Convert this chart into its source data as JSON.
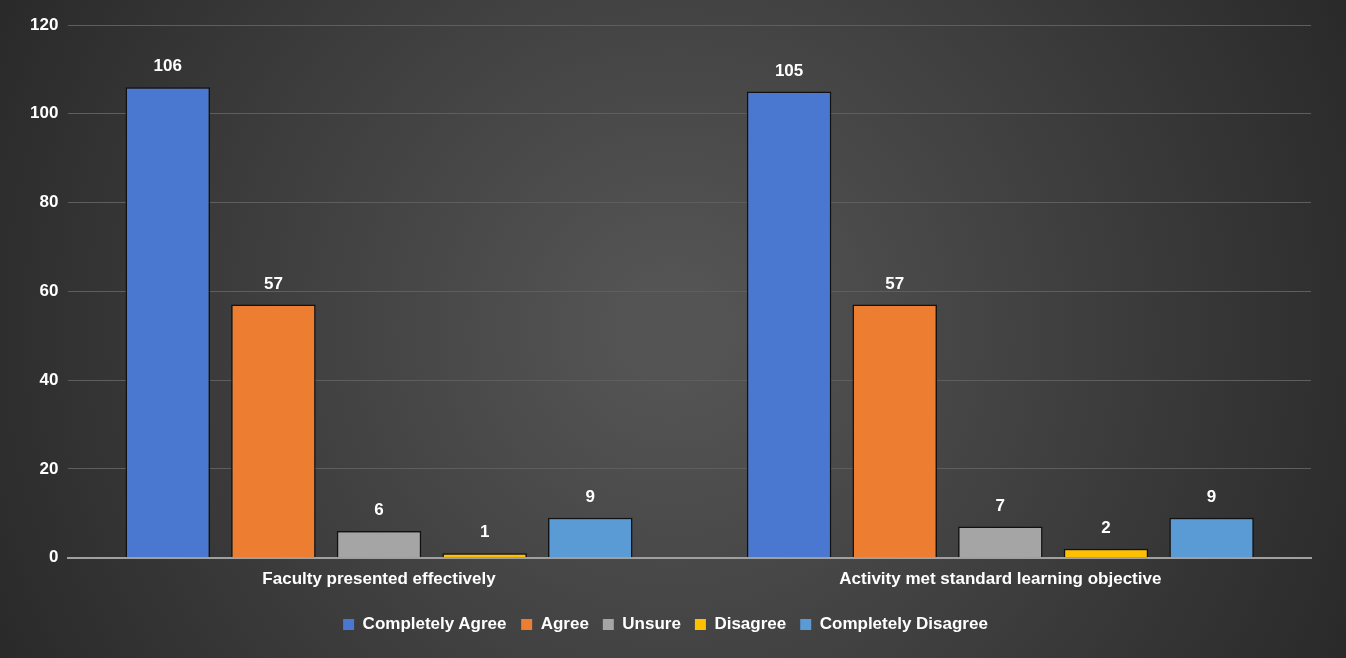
{
  "chart_data": {
    "type": "bar",
    "categories": [
      "Faculty presented effectively",
      "Activity met standard learning objective"
    ],
    "series": [
      {
        "name": "Completely Agree",
        "color": "#4a78d0",
        "values": [
          106,
          105
        ]
      },
      {
        "name": "Agree",
        "color": "#ed7d31",
        "values": [
          57,
          57
        ]
      },
      {
        "name": "Unsure",
        "color": "#a5a5a5",
        "values": [
          6,
          7
        ]
      },
      {
        "name": "Disagree",
        "color": "#ffc000",
        "values": [
          1,
          2
        ]
      },
      {
        "name": "Completely Disagree",
        "color": "#5b9bd5",
        "values": [
          9,
          9
        ]
      }
    ],
    "ylim": [
      0,
      120
    ],
    "yticks": [
      0,
      20,
      40,
      60,
      80,
      100,
      120
    ],
    "grid": "y",
    "legend": "bottom",
    "data_labels": true
  }
}
